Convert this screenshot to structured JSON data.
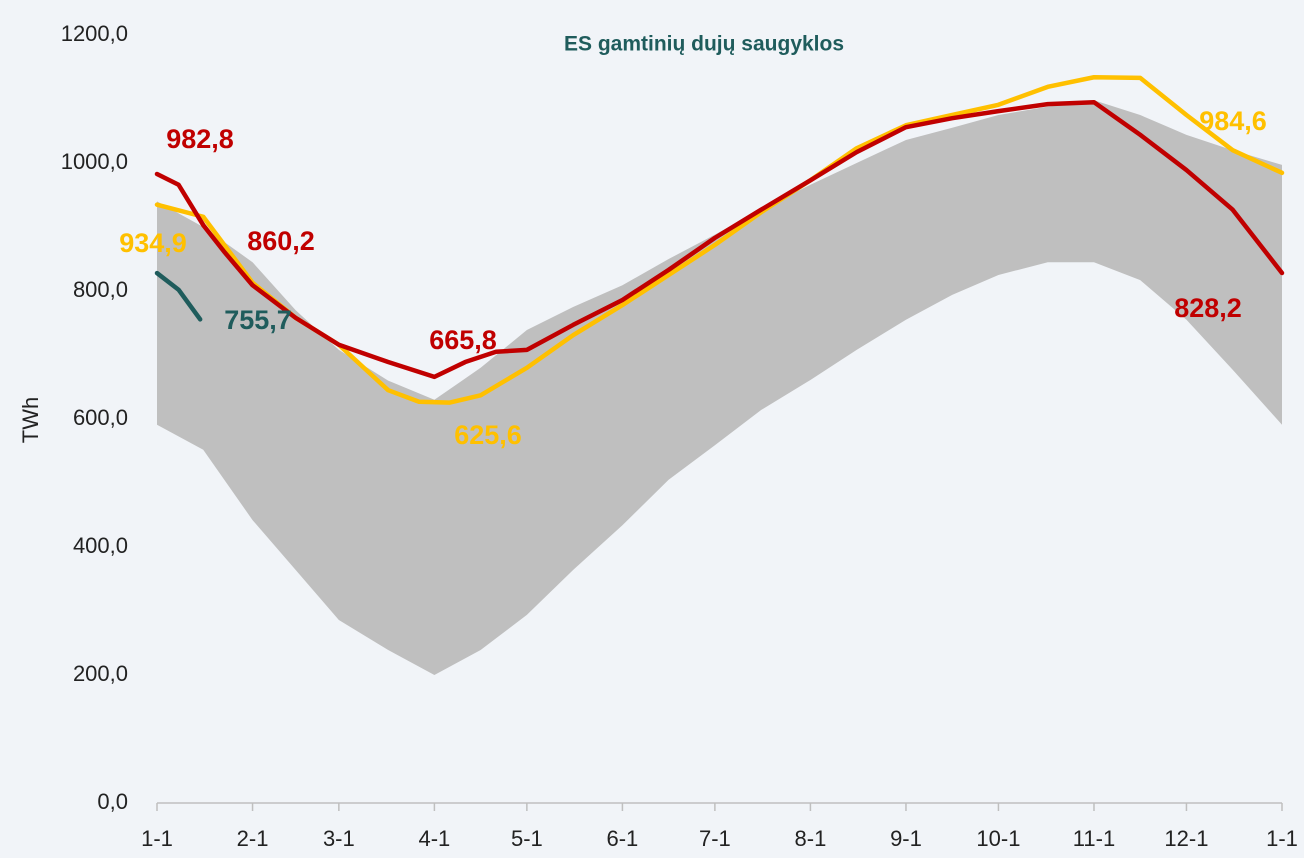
{
  "chart_data": {
    "type": "line",
    "title": "ES gamtinių dujų saugyklos",
    "y_label": "TWh",
    "xlim": [
      0,
      365
    ],
    "xticks": [
      {
        "value": 0,
        "label": "1-1"
      },
      {
        "value": 31,
        "label": "2-1"
      },
      {
        "value": 59,
        "label": "3-1"
      },
      {
        "value": 90,
        "label": "4-1"
      },
      {
        "value": 120,
        "label": "5-1"
      },
      {
        "value": 151,
        "label": "6-1"
      },
      {
        "value": 181,
        "label": "7-1"
      },
      {
        "value": 212,
        "label": "8-1"
      },
      {
        "value": 243,
        "label": "9-1"
      },
      {
        "value": 273,
        "label": "10-1"
      },
      {
        "value": 304,
        "label": "11-1"
      },
      {
        "value": 334,
        "label": "12-1"
      },
      {
        "value": 365,
        "label": "1-1"
      }
    ],
    "ylim": [
      0,
      1200
    ],
    "yticks": [
      {
        "value": 0,
        "label": "0,0"
      },
      {
        "value": 200,
        "label": "200,0"
      },
      {
        "value": 400,
        "label": "400,0"
      },
      {
        "value": 600,
        "label": "600,0"
      },
      {
        "value": 800,
        "label": "800,0"
      },
      {
        "value": 1000,
        "label": "1000,0"
      },
      {
        "value": 1200,
        "label": "1200,0"
      }
    ],
    "band": {
      "color": "#bfbfbf",
      "x": [
        0,
        15,
        31,
        45,
        59,
        75,
        90,
        105,
        120,
        135,
        151,
        166,
        181,
        196,
        212,
        227,
        243,
        258,
        273,
        289,
        304,
        319,
        334,
        349,
        365
      ],
      "high": [
        940,
        900,
        845,
        770,
        708,
        660,
        630,
        680,
        739,
        775,
        809,
        850,
        888,
        928,
        966,
        1000,
        1036,
        1055,
        1075,
        1088,
        1098,
        1075,
        1044,
        1020,
        997
      ],
      "low": [
        591,
        552,
        442,
        364,
        286,
        239,
        200,
        239,
        294,
        364,
        434,
        505,
        559,
        614,
        661,
        708,
        755,
        794,
        825,
        845,
        845,
        817,
        755,
        677,
        591
      ]
    },
    "series": [
      {
        "color": "#ffc000",
        "x": [
          0,
          15,
          31,
          45,
          59,
          75,
          85,
          95,
          105,
          120,
          135,
          151,
          166,
          181,
          196,
          212,
          227,
          243,
          258,
          273,
          289,
          304,
          319,
          334,
          349,
          365
        ],
        "values": [
          934.9,
          916,
          813,
          758,
          716,
          645,
          627,
          625.6,
          637,
          680,
          731,
          778,
          825,
          872,
          923,
          973,
          1023,
          1059,
          1075,
          1091,
          1119,
          1134,
          1133,
          1075,
          1020,
          984.6
        ],
        "value_labels": [
          "934,9",
          null,
          null,
          null,
          null,
          null,
          null,
          "625,6",
          null,
          null,
          null,
          null,
          null,
          null,
          null,
          null,
          null,
          null,
          null,
          null,
          null,
          null,
          null,
          null,
          null,
          "984,6"
        ]
      },
      {
        "color": "#c00000",
        "x": [
          0,
          7,
          15,
          22,
          31,
          45,
          59,
          75,
          90,
          100,
          110,
          120,
          135,
          151,
          166,
          181,
          196,
          212,
          227,
          243,
          258,
          273,
          289,
          304,
          319,
          334,
          349,
          365
        ],
        "values": [
          982.8,
          966,
          903,
          860.2,
          809,
          758,
          716,
          689,
          665.8,
          689,
          705,
          708,
          747,
          786,
          833,
          883,
          927,
          973,
          1017,
          1056,
          1070,
          1081,
          1092,
          1095,
          1044,
          989,
          927,
          828.2
        ],
        "value_labels": [
          "982,8",
          null,
          null,
          "860,2",
          null,
          null,
          null,
          null,
          "665,8",
          null,
          null,
          null,
          null,
          null,
          null,
          null,
          null,
          null,
          null,
          null,
          null,
          null,
          null,
          null,
          null,
          null,
          null,
          "828,2"
        ]
      },
      {
        "color": "#1f5c5c",
        "x": [
          0,
          7,
          14
        ],
        "values": [
          828,
          802,
          755.7
        ],
        "value_labels": [
          null,
          null,
          "755,7"
        ]
      }
    ]
  }
}
